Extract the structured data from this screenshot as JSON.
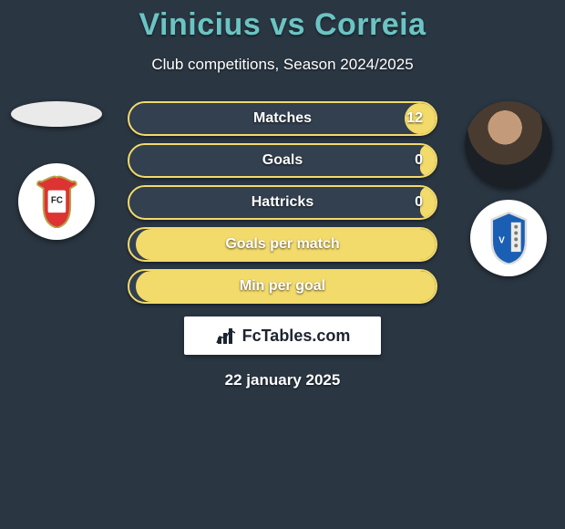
{
  "title_parts": {
    "p1": "Vinicius",
    "vs": "vs",
    "p2": "Correia"
  },
  "subtitle": "Club competitions, Season 2024/2025",
  "date": "22 january 2025",
  "branding": "FcTables.com",
  "branding_icon": "bar-chart-icon",
  "colors": {
    "background": "#2a3642",
    "title": "#6bc4c4",
    "bar_bg": "#324050",
    "bar_border": "#f2da6b",
    "bar_right": "#f2da6b",
    "text": "#ffffff"
  },
  "bars": [
    {
      "label": "Matches",
      "left_val": "",
      "right_val": "12",
      "right_pct": 10
    },
    {
      "label": "Goals",
      "left_val": "",
      "right_val": "0",
      "right_pct": 5
    },
    {
      "label": "Hattricks",
      "left_val": "",
      "right_val": "0",
      "right_pct": 5
    },
    {
      "label": "Goals per match",
      "left_val": "",
      "right_val": "",
      "right_pct": 98
    },
    {
      "label": "Min per goal",
      "left_val": "",
      "right_val": "",
      "right_pct": 98
    }
  ],
  "left_side": {
    "player_name": "Vinicius",
    "player_photo": "blank",
    "club": "Penafiel"
  },
  "right_side": {
    "player_name": "Correia",
    "player_photo": "portrait",
    "club": "Vizela"
  }
}
